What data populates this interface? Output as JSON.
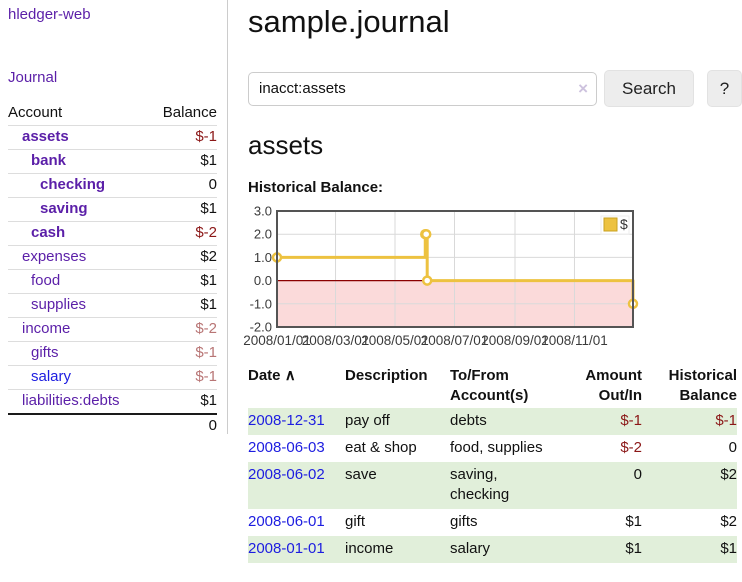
{
  "app": {
    "brand": "hledger-web",
    "nav_journal": "Journal"
  },
  "colors": {
    "purple": "#5b1fa8",
    "blue": "#1d1de0",
    "neg_strong": "#8b1717",
    "neg_muted": "#b87575",
    "row_stripe": "#e1efda",
    "chart_line": "#edc240",
    "chart_negative_region": "#fbdada",
    "zero_line": "#8b0000"
  },
  "sidebar": {
    "headers": {
      "account": "Account",
      "balance": "Balance"
    },
    "accounts": [
      {
        "name": "assets",
        "level": 1,
        "bold": true,
        "link_color": "purple",
        "balance": "$-1",
        "balance_style": "neg"
      },
      {
        "name": "bank",
        "level": 2,
        "bold": true,
        "link_color": "purple",
        "balance": "$1",
        "balance_style": "pos"
      },
      {
        "name": "checking",
        "level": 3,
        "bold": true,
        "link_color": "purple",
        "balance": "0",
        "balance_style": "pos"
      },
      {
        "name": "saving",
        "level": 3,
        "bold": true,
        "link_color": "purple",
        "balance": "$1",
        "balance_style": "pos"
      },
      {
        "name": "cash",
        "level": 2,
        "bold": true,
        "link_color": "purple",
        "balance": "$-2",
        "balance_style": "neg"
      },
      {
        "name": "expenses",
        "level": 1,
        "bold": false,
        "link_color": "purple",
        "balance": "$2",
        "balance_style": "pos"
      },
      {
        "name": "food",
        "level": 2,
        "bold": false,
        "link_color": "purple",
        "balance": "$1",
        "balance_style": "pos"
      },
      {
        "name": "supplies",
        "level": 2,
        "bold": false,
        "link_color": "purple",
        "balance": "$1",
        "balance_style": "pos"
      },
      {
        "name": "income",
        "level": 1,
        "bold": false,
        "link_color": "purple",
        "balance": "$-2",
        "balance_style": "neg-muted"
      },
      {
        "name": "gifts",
        "level": 2,
        "bold": false,
        "link_color": "purple",
        "balance": "$-1",
        "balance_style": "neg-muted"
      },
      {
        "name": "salary",
        "level": 2,
        "bold": false,
        "link_color": "blue",
        "balance": "$-1",
        "balance_style": "neg-muted"
      },
      {
        "name": "liabilities:debts",
        "level": 1,
        "bold": false,
        "link_color": "purple",
        "balance": "$1",
        "balance_style": "pos"
      }
    ],
    "total": "0"
  },
  "header": {
    "title": "sample.journal"
  },
  "search": {
    "value": "inacct:assets",
    "clear_icon": "×",
    "search_label": "Search",
    "help_label": "?"
  },
  "account_page": {
    "title": "assets",
    "chart_label": "Historical Balance:"
  },
  "chart_data": {
    "type": "line",
    "step": true,
    "title": "Historical Balance",
    "ylim": [
      -2,
      3
    ],
    "xlim_days": [
      0,
      365
    ],
    "y_ticks": [
      3.0,
      2.0,
      1.0,
      0.0,
      -1.0,
      -2.0
    ],
    "x_ticks": [
      {
        "label": "2008/01/01",
        "day": 0
      },
      {
        "label": "2008/03/01",
        "day": 60
      },
      {
        "label": "2008/05/01",
        "day": 121
      },
      {
        "label": "2008/07/01",
        "day": 182
      },
      {
        "label": "2008/09/01",
        "day": 244
      },
      {
        "label": "2008/11/01",
        "day": 305
      }
    ],
    "grid": true,
    "legend_position": "top-right",
    "negative_region_shaded": true,
    "series": [
      {
        "name": "$",
        "color": "#edc240",
        "points": [
          {
            "date": "2008-01-01",
            "day": 0,
            "value": 1
          },
          {
            "date": "2008-06-01",
            "day": 152,
            "value": 2
          },
          {
            "date": "2008-06-02",
            "day": 153,
            "value": 2
          },
          {
            "date": "2008-06-03",
            "day": 154,
            "value": 0
          },
          {
            "date": "2008-12-31",
            "day": 365,
            "value": -1
          }
        ]
      }
    ]
  },
  "register": {
    "headers": {
      "date": "Date",
      "sort_icon": "∧",
      "description": "Description",
      "accounts": "To/From Account(s)",
      "amount": "Amount Out/In",
      "balance": "Historical Balance"
    },
    "rows": [
      {
        "date": "2008-12-31",
        "description": "pay off",
        "accounts": "debts",
        "amount": "$-1",
        "amount_neg": true,
        "balance": "$-1",
        "balance_neg": true
      },
      {
        "date": "2008-06-03",
        "description": "eat & shop",
        "accounts": "food, supplies",
        "amount": "$-2",
        "amount_neg": true,
        "balance": "0",
        "balance_neg": false
      },
      {
        "date": "2008-06-02",
        "description": "save",
        "accounts": "saving, checking",
        "amount": "0",
        "amount_neg": false,
        "balance": "$2",
        "balance_neg": false
      },
      {
        "date": "2008-06-01",
        "description": "gift",
        "accounts": "gifts",
        "amount": "$1",
        "amount_neg": false,
        "balance": "$2",
        "balance_neg": false
      },
      {
        "date": "2008-01-01",
        "description": "income",
        "accounts": "salary",
        "amount": "$1",
        "amount_neg": false,
        "balance": "$1",
        "balance_neg": false
      }
    ]
  }
}
